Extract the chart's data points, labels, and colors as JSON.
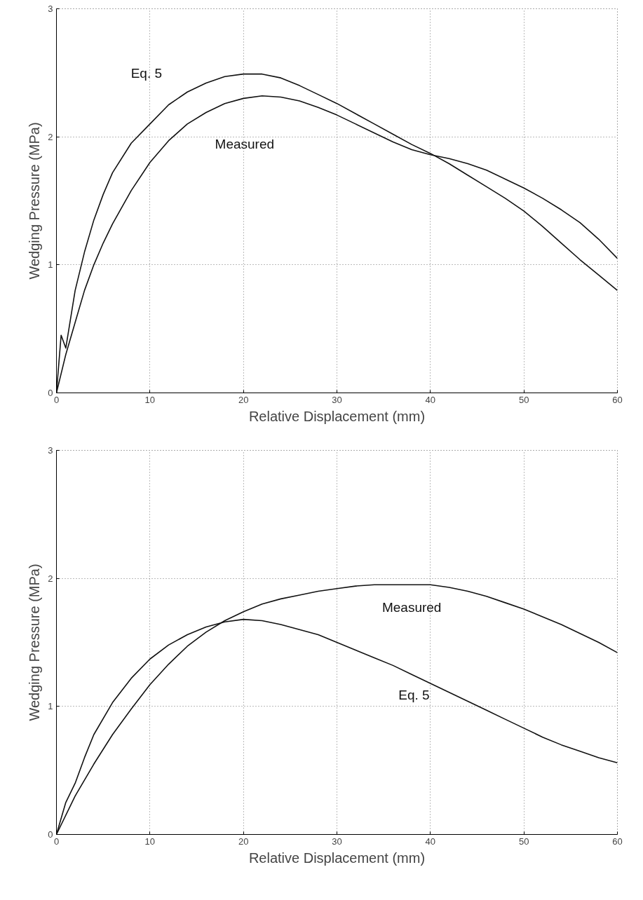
{
  "chart_data": [
    {
      "type": "line",
      "xlabel": "Relative Displacement (mm)",
      "ylabel": "Wedging Pressure (MPa)",
      "xlim": [
        0,
        60
      ],
      "ylim": [
        0,
        3
      ],
      "xticks": [
        0,
        10,
        20,
        30,
        40,
        50,
        60
      ],
      "yticks": [
        0,
        1,
        2,
        3
      ],
      "grid": true,
      "legend": false,
      "marker": "none",
      "line_style": "solid",
      "series": [
        {
          "name": "Eq. 5",
          "color": "#111111",
          "x": [
            0,
            0.5,
            1,
            2,
            3,
            4,
            5,
            6,
            8,
            10,
            12,
            14,
            16,
            18,
            20,
            22,
            24,
            26,
            28,
            30,
            32,
            34,
            36,
            38,
            40,
            42,
            44,
            46,
            48,
            50,
            52,
            54,
            56,
            58,
            60
          ],
          "values": [
            0,
            0.45,
            0.35,
            0.8,
            1.1,
            1.35,
            1.55,
            1.72,
            1.95,
            2.1,
            2.25,
            2.35,
            2.42,
            2.47,
            2.49,
            2.49,
            2.46,
            2.4,
            2.33,
            2.26,
            2.18,
            2.1,
            2.02,
            1.94,
            1.87,
            1.79,
            1.7,
            1.61,
            1.52,
            1.42,
            1.3,
            1.17,
            1.04,
            0.92,
            0.8
          ]
        },
        {
          "name": "Measured",
          "color": "#111111",
          "x": [
            0,
            1,
            2,
            3,
            4,
            5,
            6,
            8,
            10,
            12,
            14,
            16,
            18,
            20,
            22,
            24,
            26,
            28,
            30,
            32,
            34,
            36,
            38,
            40,
            42,
            44,
            46,
            48,
            50,
            52,
            54,
            56,
            58,
            60
          ],
          "values": [
            0,
            0.3,
            0.55,
            0.8,
            1.0,
            1.17,
            1.32,
            1.58,
            1.8,
            1.97,
            2.1,
            2.19,
            2.26,
            2.3,
            2.32,
            2.31,
            2.28,
            2.23,
            2.17,
            2.1,
            2.03,
            1.96,
            1.9,
            1.86,
            1.83,
            1.79,
            1.74,
            1.67,
            1.6,
            1.52,
            1.43,
            1.33,
            1.2,
            1.05
          ]
        }
      ]
    },
    {
      "type": "line",
      "xlabel": "Relative Displacement (mm)",
      "ylabel": "Wedging Pressure (MPa)",
      "xlim": [
        0,
        60
      ],
      "ylim": [
        0,
        3
      ],
      "xticks": [
        0,
        10,
        20,
        30,
        40,
        50,
        60
      ],
      "yticks": [
        0,
        1,
        2,
        3
      ],
      "grid": true,
      "legend": false,
      "marker": "none",
      "line_style": "solid",
      "series": [
        {
          "name": "Measured",
          "color": "#111111",
          "x": [
            0,
            2,
            4,
            6,
            8,
            10,
            12,
            14,
            16,
            18,
            20,
            22,
            24,
            26,
            28,
            30,
            32,
            34,
            36,
            38,
            40,
            42,
            44,
            46,
            48,
            50,
            52,
            54,
            56,
            58,
            60
          ],
          "values": [
            0,
            0.3,
            0.55,
            0.78,
            0.98,
            1.17,
            1.33,
            1.47,
            1.58,
            1.67,
            1.74,
            1.8,
            1.84,
            1.87,
            1.9,
            1.92,
            1.94,
            1.95,
            1.95,
            1.95,
            1.95,
            1.93,
            1.9,
            1.86,
            1.81,
            1.76,
            1.7,
            1.64,
            1.57,
            1.5,
            1.42
          ]
        },
        {
          "name": "Eq. 5",
          "color": "#111111",
          "x": [
            0,
            1,
            2,
            3,
            4,
            6,
            8,
            10,
            12,
            14,
            16,
            18,
            20,
            22,
            24,
            26,
            28,
            30,
            32,
            34,
            36,
            38,
            40,
            42,
            44,
            46,
            48,
            50,
            52,
            54,
            56,
            58,
            60
          ],
          "values": [
            0,
            0.25,
            0.4,
            0.6,
            0.78,
            1.03,
            1.22,
            1.37,
            1.48,
            1.56,
            1.62,
            1.66,
            1.68,
            1.67,
            1.64,
            1.6,
            1.56,
            1.5,
            1.44,
            1.38,
            1.32,
            1.25,
            1.18,
            1.11,
            1.04,
            0.97,
            0.9,
            0.83,
            0.76,
            0.7,
            0.65,
            0.6,
            0.56
          ]
        }
      ]
    }
  ]
}
